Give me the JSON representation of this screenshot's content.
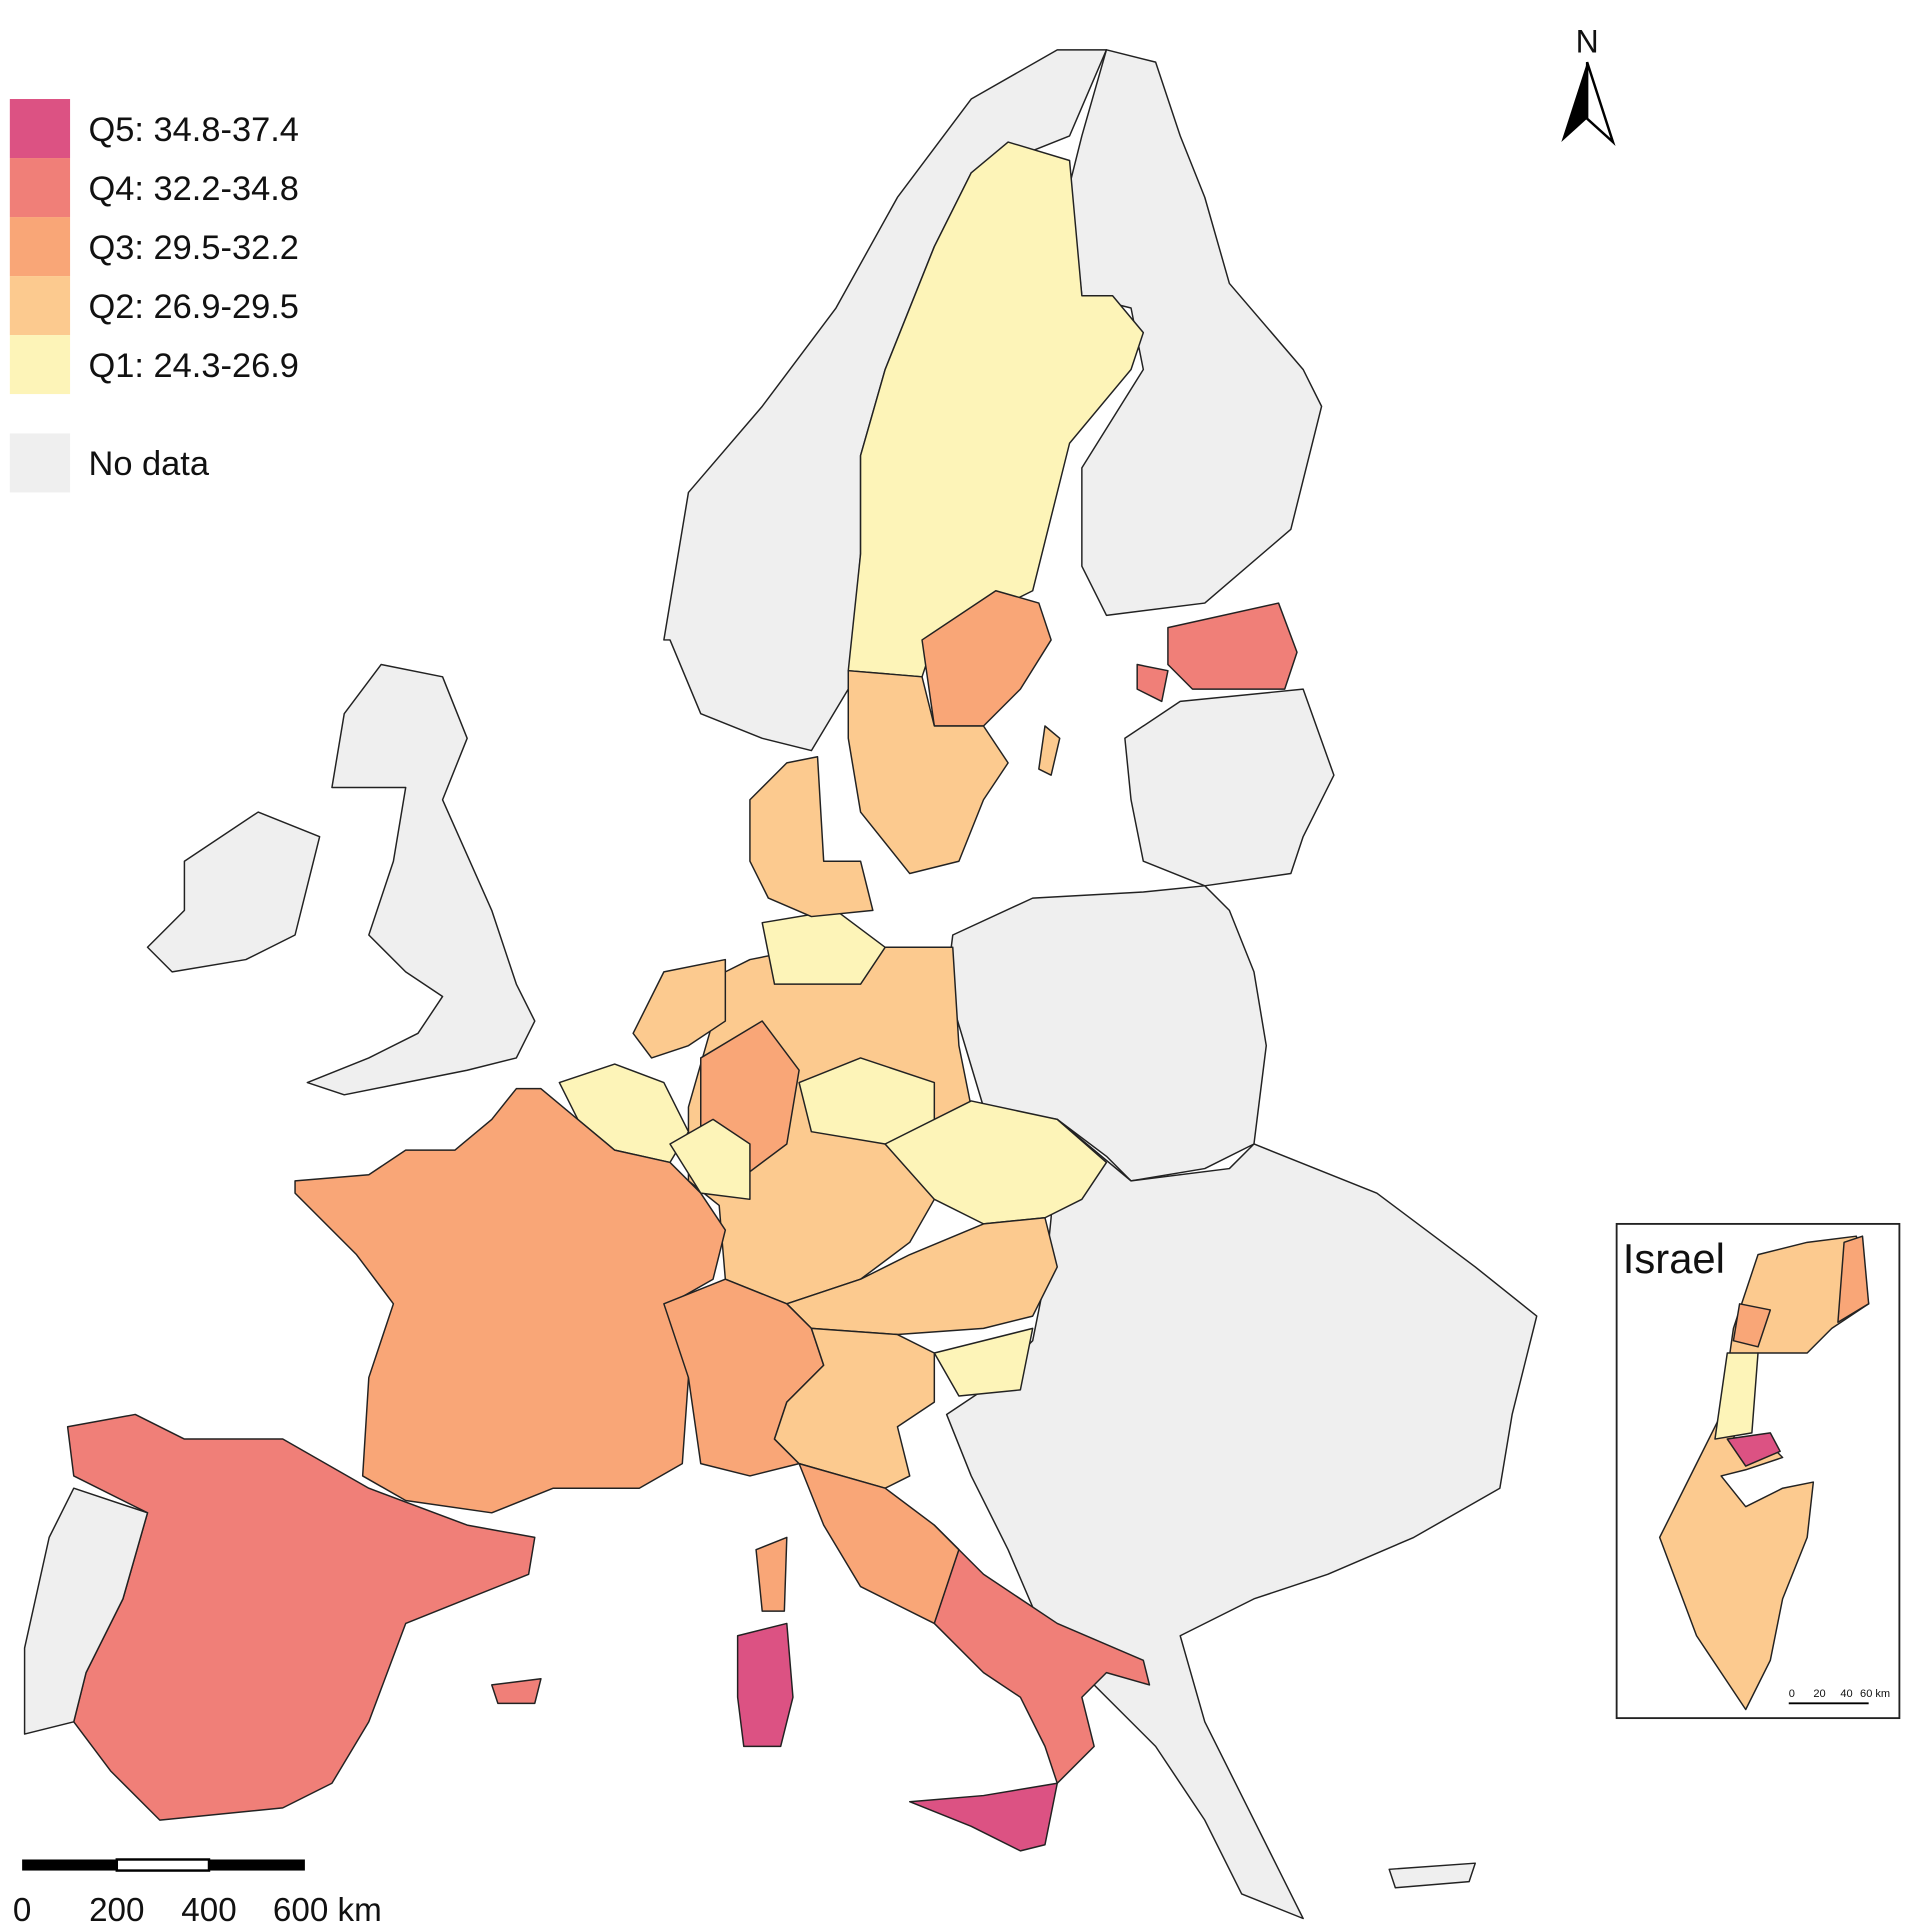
{
  "legend": {
    "items": [
      {
        "label": "Q5: 34.8-37.4",
        "color": "#dc5283"
      },
      {
        "label": "Q4: 32.2-34.8",
        "color": "#f07f78"
      },
      {
        "label": "Q3: 29.5-32.2",
        "color": "#f9a677"
      },
      {
        "label": "Q2: 26.9-29.5",
        "color": "#fcca8f"
      },
      {
        "label": "Q1: 24.3-26.9",
        "color": "#fdf4b8"
      }
    ],
    "no_data": {
      "label": "No data",
      "color": "#efefef"
    }
  },
  "north_arrow": {
    "label": "N"
  },
  "scale_bar": {
    "labels": [
      "0",
      "200",
      "400",
      "600 km"
    ]
  },
  "inset": {
    "title": "Israel",
    "scale_labels": [
      "0",
      "20",
      "40",
      "60 km"
    ]
  }
}
